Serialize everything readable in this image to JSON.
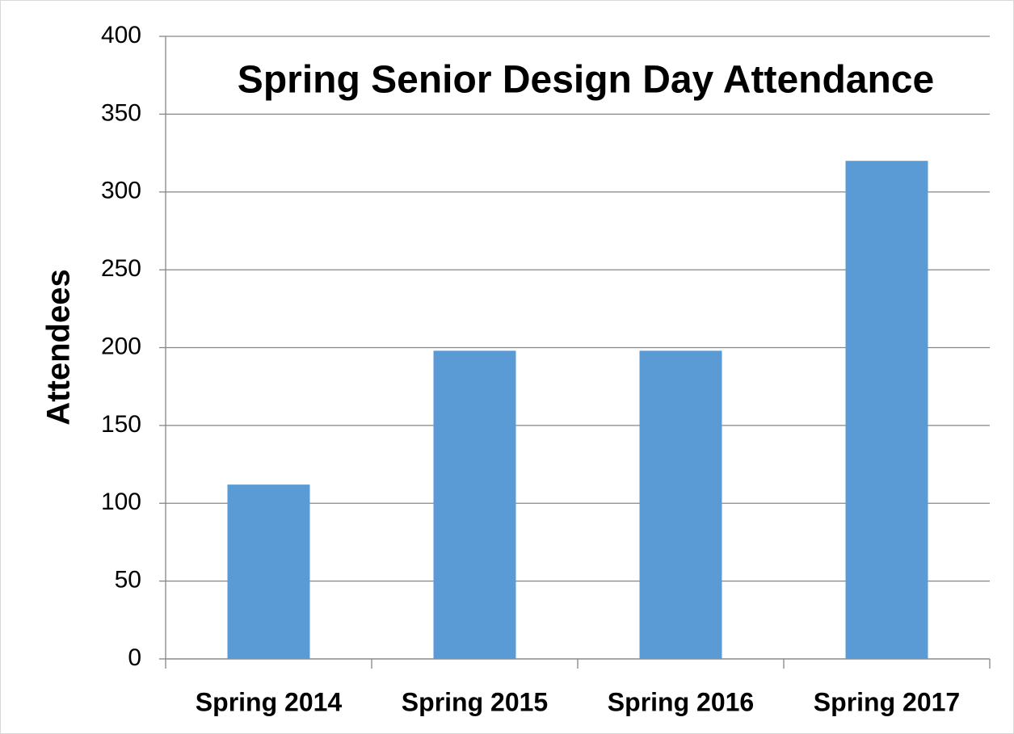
{
  "chart_data": {
    "type": "bar",
    "title": "Spring Senior Design Day Attendance",
    "y_label": "Attendees",
    "categories": [
      "Spring 2014",
      "Spring 2015",
      "Spring 2016",
      "Spring 2017"
    ],
    "values": [
      112,
      198,
      198,
      320
    ],
    "color": "#5b9bd5",
    "ylim": [
      0,
      400
    ],
    "yticks": [
      0,
      50,
      100,
      150,
      200,
      250,
      300,
      350,
      400
    ],
    "grid": true
  }
}
